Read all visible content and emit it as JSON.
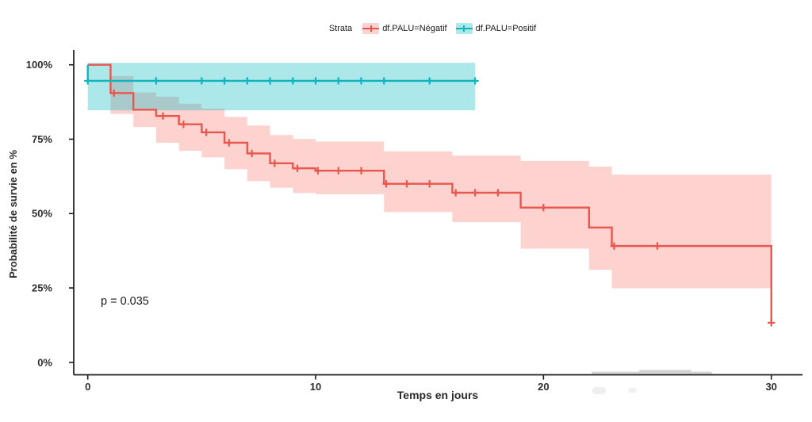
{
  "legend": {
    "title": "Strata",
    "items": [
      {
        "label": "df.PALU=Négatif",
        "line_color": "#E8574D",
        "fill_color": "rgba(248,118,109,0.33)"
      },
      {
        "label": "df.PALU=Positif",
        "line_color": "#0FB5BC",
        "fill_color": "rgba(4,183,190,0.33)"
      }
    ]
  },
  "chart_data": {
    "type": "line",
    "subtype": "kaplan-meier-step-survival",
    "title": "",
    "xlabel": "Temps en jours",
    "ylabel": "Probabilité de survie en %",
    "pvalue": "p = 0.035",
    "grid": false,
    "legend_position": "top",
    "xlim": [
      -0.6,
      31.4
    ],
    "ylim": [
      -4.3,
      102.3
    ],
    "x_ticks": [
      {
        "v": 0,
        "label": "0"
      },
      {
        "v": 10,
        "label": "10"
      },
      {
        "v": 20,
        "label": "20"
      },
      {
        "v": 30,
        "label": "30"
      }
    ],
    "y_ticks": [
      {
        "v": 0,
        "label": "0%"
      },
      {
        "v": 25,
        "label": "25%"
      },
      {
        "v": 50,
        "label": "50%"
      },
      {
        "v": 75,
        "label": "75%"
      },
      {
        "v": 100,
        "label": "100%"
      }
    ],
    "series": [
      {
        "name": "df.PALU=Négatif",
        "line_color": "#E8574D",
        "fill_color": "rgba(248,118,109,0.33)",
        "steps": [
          [
            0,
            1,
            100,
            100,
            100
          ],
          [
            1,
            2,
            90.5,
            83.5,
            96.2
          ],
          [
            2,
            3,
            84.9,
            79.1,
            90.7
          ],
          [
            3,
            4,
            82.8,
            73.8,
            89.3
          ],
          [
            4,
            5,
            80.0,
            71.1,
            86.9
          ],
          [
            5,
            6,
            77.3,
            68.9,
            85.3
          ],
          [
            6,
            7,
            73.8,
            64.9,
            82.5
          ],
          [
            7,
            8,
            70.2,
            60.9,
            79.6
          ],
          [
            8,
            9,
            66.9,
            58.7,
            76.4
          ],
          [
            9,
            10,
            65.2,
            56.9,
            75.1
          ],
          [
            10,
            13,
            64.4,
            56.5,
            74.2
          ],
          [
            13,
            16,
            60.0,
            50.5,
            70.9
          ],
          [
            16,
            19,
            57.0,
            47.1,
            69.5
          ],
          [
            19,
            22,
            52.0,
            38.2,
            67.7
          ],
          [
            22,
            23,
            45.3,
            31.1,
            65.8
          ],
          [
            23,
            30,
            39.1,
            24.9,
            63.1
          ]
        ],
        "end_drop_to": 13.3,
        "censors": [
          [
            1.15,
            90.5
          ],
          [
            3.3,
            82.8
          ],
          [
            4.2,
            80.0
          ],
          [
            5.2,
            77.3
          ],
          [
            6.2,
            73.8
          ],
          [
            7.2,
            70.2
          ],
          [
            8.2,
            66.9
          ],
          [
            9.2,
            65.2
          ],
          [
            10.1,
            64.4
          ],
          [
            11,
            64.4
          ],
          [
            12,
            64.4
          ],
          [
            13.1,
            60.0
          ],
          [
            14,
            60.0
          ],
          [
            15,
            60.0
          ],
          [
            16.15,
            57.0
          ],
          [
            17,
            57.0
          ],
          [
            18,
            57.0
          ],
          [
            20,
            52.0
          ],
          [
            23.1,
            39.1
          ],
          [
            25,
            39.1
          ],
          [
            30,
            13.3
          ]
        ]
      },
      {
        "name": "df.PALU=Positif",
        "line_color": "#0FB5BC",
        "fill_color": "rgba(4,183,190,0.33)",
        "start_at": 100,
        "steps": [
          [
            0,
            17,
            94.6,
            84.7,
            100.7
          ]
        ],
        "censors": [
          [
            0,
            94.6
          ],
          [
            3,
            94.6
          ],
          [
            5,
            94.6
          ],
          [
            6,
            94.6
          ],
          [
            7,
            94.6
          ],
          [
            8,
            94.6
          ],
          [
            9,
            94.6
          ],
          [
            10,
            94.6
          ],
          [
            11,
            94.6
          ],
          [
            12,
            94.6
          ],
          [
            13,
            94.6
          ],
          [
            15,
            94.6
          ],
          [
            17,
            94.6
          ]
        ]
      }
    ]
  }
}
